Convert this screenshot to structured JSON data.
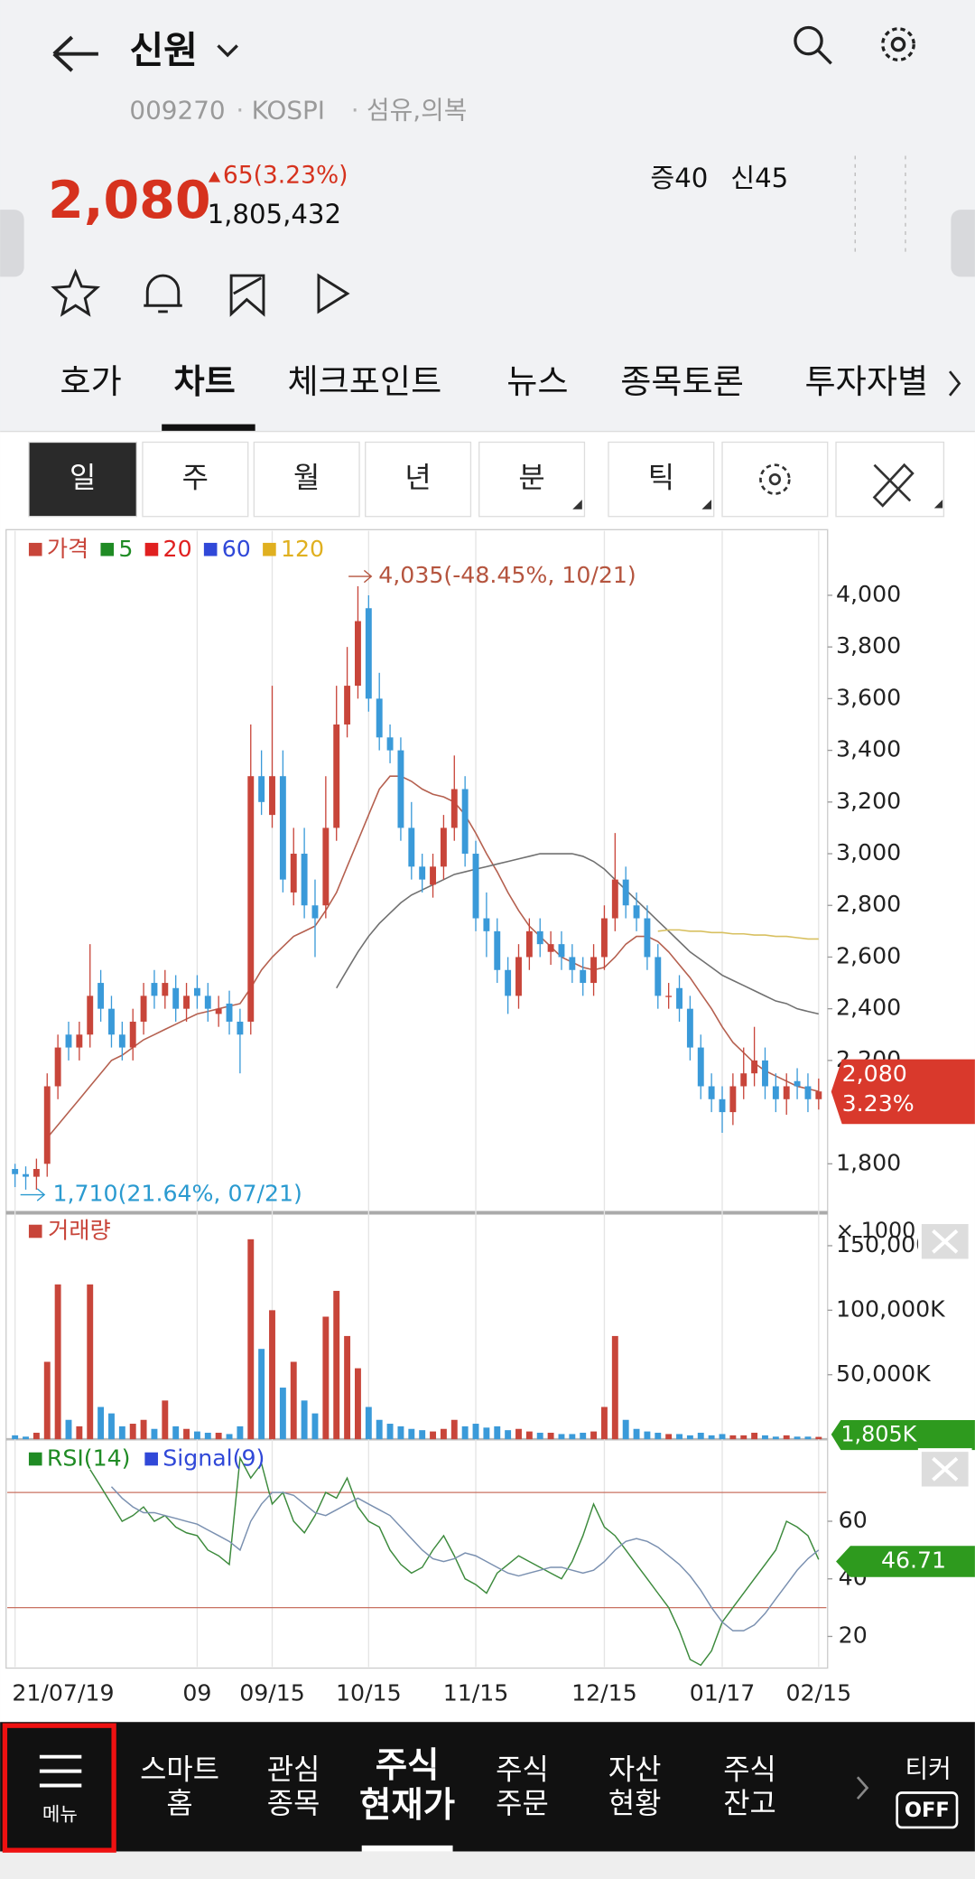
{
  "header": {
    "title": "신원",
    "code": "009270",
    "market": "KOSPI",
    "sector": "섬유,의복",
    "price": "2,080",
    "change": "65(3.23%)",
    "volume": "1,805,432",
    "badges": [
      "증40",
      "신45"
    ]
  },
  "tabs": {
    "items": [
      "호가",
      "차트",
      "체크포인트",
      "뉴스",
      "종목토론",
      "투자자별"
    ],
    "active": 1
  },
  "periods": {
    "items": [
      "일",
      "주",
      "월",
      "년",
      "분",
      "틱"
    ],
    "active": 0
  },
  "nav": {
    "menu": "메뉴",
    "items": [
      [
        "스마트",
        "홈"
      ],
      [
        "관심",
        "종목"
      ],
      [
        "주식",
        "현재가"
      ],
      [
        "주식",
        "주문"
      ],
      [
        "자산",
        "현황"
      ],
      [
        "주식",
        "잔고"
      ]
    ],
    "active": 2,
    "ticker": "티커",
    "ticker_state": "OFF"
  },
  "chart_data": {
    "type": "candlestick",
    "categories": [
      "21/07/19",
      null,
      null,
      null,
      null,
      null,
      null,
      null,
      null,
      null,
      null,
      null,
      null,
      null,
      null,
      null,
      null,
      "09",
      null,
      null,
      null,
      null,
      null,
      null,
      "09/15",
      null,
      null,
      null,
      null,
      null,
      null,
      null,
      null,
      "10/15",
      null,
      null,
      null,
      null,
      null,
      null,
      null,
      null,
      null,
      "11/15",
      null,
      null,
      null,
      null,
      null,
      null,
      null,
      null,
      null,
      null,
      null,
      "12/15",
      null,
      null,
      null,
      null,
      null,
      null,
      null,
      null,
      null,
      null,
      "01/17",
      null,
      null,
      null,
      null,
      null,
      null,
      null,
      null,
      "02/15"
    ],
    "open": [
      1780,
      1760,
      1750,
      1800,
      2100,
      2300,
      2250,
      2300,
      2500,
      2400,
      2300,
      2250,
      2350,
      2500,
      2450,
      2480,
      2400,
      2480,
      2450,
      2380,
      2420,
      2350,
      2350,
      3300,
      3150,
      3300,
      2850,
      3000,
      2800,
      2800,
      3100,
      3500,
      3650,
      3950,
      3600,
      3450,
      3400,
      3100,
      2950,
      2880,
      2950,
      3100,
      3250,
      3000,
      2750,
      2700,
      2550,
      2450,
      2600,
      2700,
      2620,
      2650,
      2600,
      2550,
      2500,
      2600,
      2750,
      2900,
      2800,
      2750,
      2600,
      2450,
      2480,
      2400,
      2250,
      2100,
      2050,
      2000,
      2100,
      2150,
      2200,
      2100,
      2050,
      2120,
      2100,
      2050
    ],
    "high": [
      1800,
      1790,
      1820,
      2150,
      2300,
      2350,
      2350,
      2650,
      2550,
      2450,
      2350,
      2400,
      2500,
      2550,
      2550,
      2530,
      2500,
      2530,
      2500,
      2450,
      2470,
      2400,
      3500,
      3400,
      3650,
      3400,
      3100,
      3100,
      2900,
      3300,
      3650,
      3800,
      4035,
      4000,
      3700,
      3500,
      3450,
      3200,
      3000,
      3000,
      3150,
      3380,
      3300,
      3050,
      2850,
      2750,
      2600,
      2650,
      2750,
      2750,
      2700,
      2700,
      2650,
      2600,
      2650,
      2800,
      3080,
      2950,
      2850,
      2800,
      2650,
      2500,
      2530,
      2450,
      2300,
      2150,
      2100,
      2150,
      2250,
      2330,
      2250,
      2150,
      2150,
      2170,
      2150,
      2130
    ],
    "low": [
      1710,
      1700,
      1700,
      1750,
      2050,
      2200,
      2200,
      2250,
      2350,
      2250,
      2200,
      2200,
      2300,
      2400,
      2400,
      2350,
      2350,
      2400,
      2350,
      2330,
      2300,
      2150,
      2300,
      3150,
      3100,
      2850,
      2800,
      2750,
      2600,
      2750,
      3050,
      3450,
      3600,
      3550,
      3400,
      3350,
      3050,
      2900,
      2850,
      2830,
      2900,
      3050,
      2950,
      2700,
      2600,
      2500,
      2380,
      2400,
      2550,
      2600,
      2570,
      2550,
      2500,
      2450,
      2450,
      2550,
      2700,
      2750,
      2700,
      2550,
      2400,
      2400,
      2350,
      2200,
      2050,
      2000,
      1920,
      1950,
      2050,
      2100,
      2050,
      2000,
      1990,
      2050,
      2000,
      2010
    ],
    "close": [
      1760,
      1750,
      1780,
      2100,
      2250,
      2250,
      2300,
      2450,
      2400,
      2300,
      2250,
      2350,
      2450,
      2450,
      2500,
      2400,
      2450,
      2450,
      2400,
      2400,
      2350,
      2300,
      3300,
      3200,
      3300,
      2900,
      3000,
      2800,
      2750,
      3100,
      3500,
      3650,
      3900,
      3600,
      3450,
      3400,
      3100,
      2950,
      2900,
      2950,
      3100,
      3250,
      3000,
      2750,
      2700,
      2550,
      2450,
      2600,
      2700,
      2650,
      2650,
      2600,
      2550,
      2500,
      2600,
      2750,
      2900,
      2800,
      2750,
      2600,
      2450,
      2450,
      2400,
      2250,
      2100,
      2050,
      2000,
      2100,
      2150,
      2200,
      2100,
      2050,
      2100,
      2100,
      2050,
      2080
    ],
    "up_color": "#c8453a",
    "down_color": "#3a9ad9",
    "ylim": [
      1620,
      4240
    ],
    "yticks": [
      {
        "value": 1800,
        "label": "1,800"
      },
      {
        "value": 2200,
        "label": "2,200"
      },
      {
        "value": 2400,
        "label": "2,400"
      },
      {
        "value": 2600,
        "label": "2,600"
      },
      {
        "value": 2800,
        "label": "2,800"
      },
      {
        "value": 3000,
        "label": "3,000"
      },
      {
        "value": 3200,
        "label": "3,200"
      },
      {
        "value": 3400,
        "label": "3,400"
      },
      {
        "value": 3600,
        "label": "3,600"
      },
      {
        "value": 3800,
        "label": "3,800"
      },
      {
        "value": 4000,
        "label": "4,000"
      }
    ],
    "legend": [
      {
        "name": "가격",
        "color": "#c8453a"
      },
      {
        "name": "5",
        "color": "#1f8b24"
      },
      {
        "name": "20",
        "color": "#e02020",
        "line_color": "#b5604f",
        "values": [
          null,
          null,
          null,
          1900,
          1950,
          2000,
          2050,
          2100,
          2150,
          2200,
          2220,
          2250,
          2280,
          2300,
          2320,
          2340,
          2360,
          2380,
          2390,
          2400,
          2410,
          2420,
          2480,
          2550,
          2600,
          2640,
          2680,
          2700,
          2720,
          2780,
          2850,
          2950,
          3050,
          3150,
          3250,
          3300,
          3300,
          3280,
          3250,
          3230,
          3220,
          3200,
          3150,
          3080,
          3000,
          2930,
          2850,
          2780,
          2720,
          2680,
          2640,
          2600,
          2580,
          2560,
          2550,
          2560,
          2600,
          2650,
          2680,
          2680,
          2660,
          2620,
          2570,
          2520,
          2460,
          2400,
          2330,
          2270,
          2230,
          2190,
          2160,
          2140,
          2120,
          2100,
          2090,
          2080
        ]
      },
      {
        "name": "60",
        "color": "#3048d8",
        "line_color": "#707070",
        "values": [
          null,
          null,
          null,
          null,
          null,
          null,
          null,
          null,
          null,
          null,
          null,
          null,
          null,
          null,
          null,
          null,
          null,
          null,
          null,
          null,
          null,
          null,
          null,
          null,
          null,
          null,
          null,
          null,
          null,
          null,
          2480,
          2550,
          2620,
          2680,
          2730,
          2770,
          2810,
          2840,
          2860,
          2880,
          2900,
          2920,
          2930,
          2940,
          2950,
          2960,
          2970,
          2980,
          2990,
          3000,
          3000,
          3000,
          3000,
          2990,
          2970,
          2940,
          2900,
          2860,
          2820,
          2780,
          2740,
          2700,
          2660,
          2620,
          2590,
          2560,
          2530,
          2510,
          2490,
          2470,
          2450,
          2430,
          2420,
          2400,
          2390,
          2380
        ]
      },
      {
        "name": "120",
        "color": "#e0b020",
        "line_color": "#d8c060",
        "values": [
          null,
          null,
          null,
          null,
          null,
          null,
          null,
          null,
          null,
          null,
          null,
          null,
          null,
          null,
          null,
          null,
          null,
          null,
          null,
          null,
          null,
          null,
          null,
          null,
          null,
          null,
          null,
          null,
          null,
          null,
          null,
          null,
          null,
          null,
          null,
          null,
          null,
          null,
          null,
          null,
          null,
          null,
          null,
          null,
          null,
          null,
          null,
          null,
          null,
          null,
          null,
          null,
          null,
          null,
          null,
          null,
          null,
          null,
          null,
          null,
          2700,
          2705,
          2705,
          2700,
          2700,
          2695,
          2695,
          2690,
          2690,
          2685,
          2685,
          2680,
          2680,
          2675,
          2670,
          2670
        ]
      }
    ],
    "max_label": "4,035(-48.45%, 10/21)",
    "min_label": "1,710(21.64%, 07/21)",
    "last_label": "2,080",
    "last_change": "3.23%",
    "volume": {
      "name": "거래량",
      "color": "#c8453a",
      "unit": "× 1000",
      "last_label": "1,805K",
      "ylim": [
        0,
        170000
      ],
      "yticks": [
        {
          "value": 50000,
          "label": "50,000K"
        },
        {
          "value": 100000,
          "label": "100,000K"
        },
        {
          "value": 150000,
          "label": "150,000K"
        }
      ],
      "values": [
        3000,
        2000,
        5000,
        60000,
        120000,
        15000,
        10000,
        120000,
        25000,
        20000,
        10000,
        12000,
        15000,
        8000,
        30000,
        10000,
        8000,
        6000,
        5000,
        5000,
        4000,
        10000,
        155000,
        70000,
        100000,
        40000,
        60000,
        30000,
        20000,
        95000,
        115000,
        80000,
        55000,
        25000,
        15000,
        12000,
        10000,
        8000,
        7000,
        6000,
        8000,
        15000,
        10000,
        12000,
        9000,
        10000,
        7000,
        8000,
        6000,
        5000,
        5000,
        4000,
        4000,
        5000,
        6000,
        25000,
        80000,
        15000,
        8000,
        6000,
        5000,
        4000,
        4000,
        3000,
        5000,
        3000,
        4000,
        3000,
        3000,
        5000,
        3000,
        2000,
        3000,
        2000,
        2000,
        1805
      ]
    },
    "rsi": {
      "ylim": [
        9,
        86
      ],
      "yticks": [
        20,
        40,
        60
      ],
      "levels": [
        30,
        70
      ],
      "last_label": "46.71",
      "series": [
        {
          "name": "RSI(14)",
          "color": "#1f8b24",
          "line_color": "#3c8a3c",
          "values": [
            null,
            null,
            null,
            null,
            null,
            null,
            null,
            78,
            72,
            66,
            60,
            62,
            65,
            60,
            62,
            58,
            56,
            55,
            50,
            48,
            45,
            82,
            75,
            80,
            66,
            70,
            60,
            56,
            62,
            70,
            68,
            75,
            65,
            60,
            58,
            50,
            45,
            42,
            44,
            50,
            55,
            48,
            40,
            38,
            35,
            42,
            45,
            48,
            46,
            44,
            42,
            40,
            46,
            55,
            66,
            58,
            55,
            50,
            45,
            40,
            35,
            30,
            22,
            12,
            10,
            15,
            25,
            30,
            35,
            40,
            45,
            50,
            60,
            58,
            55,
            46.71
          ]
        },
        {
          "name": "Signal(9)",
          "color": "#3048d8",
          "line_color": "#7a90b0",
          "values": [
            null,
            null,
            null,
            null,
            null,
            null,
            null,
            null,
            null,
            72,
            68,
            65,
            63,
            63,
            62,
            61,
            60,
            59,
            57,
            55,
            53,
            50,
            60,
            66,
            70,
            70,
            69,
            66,
            63,
            62,
            64,
            66,
            68,
            66,
            64,
            62,
            58,
            54,
            50,
            47,
            46,
            47,
            49,
            48,
            46,
            44,
            42,
            41,
            42,
            43,
            44,
            44,
            43,
            42,
            43,
            46,
            50,
            53,
            54,
            53,
            51,
            48,
            45,
            41,
            36,
            30,
            25,
            22,
            22,
            24,
            28,
            33,
            38,
            43,
            47,
            50
          ]
        }
      ]
    }
  }
}
